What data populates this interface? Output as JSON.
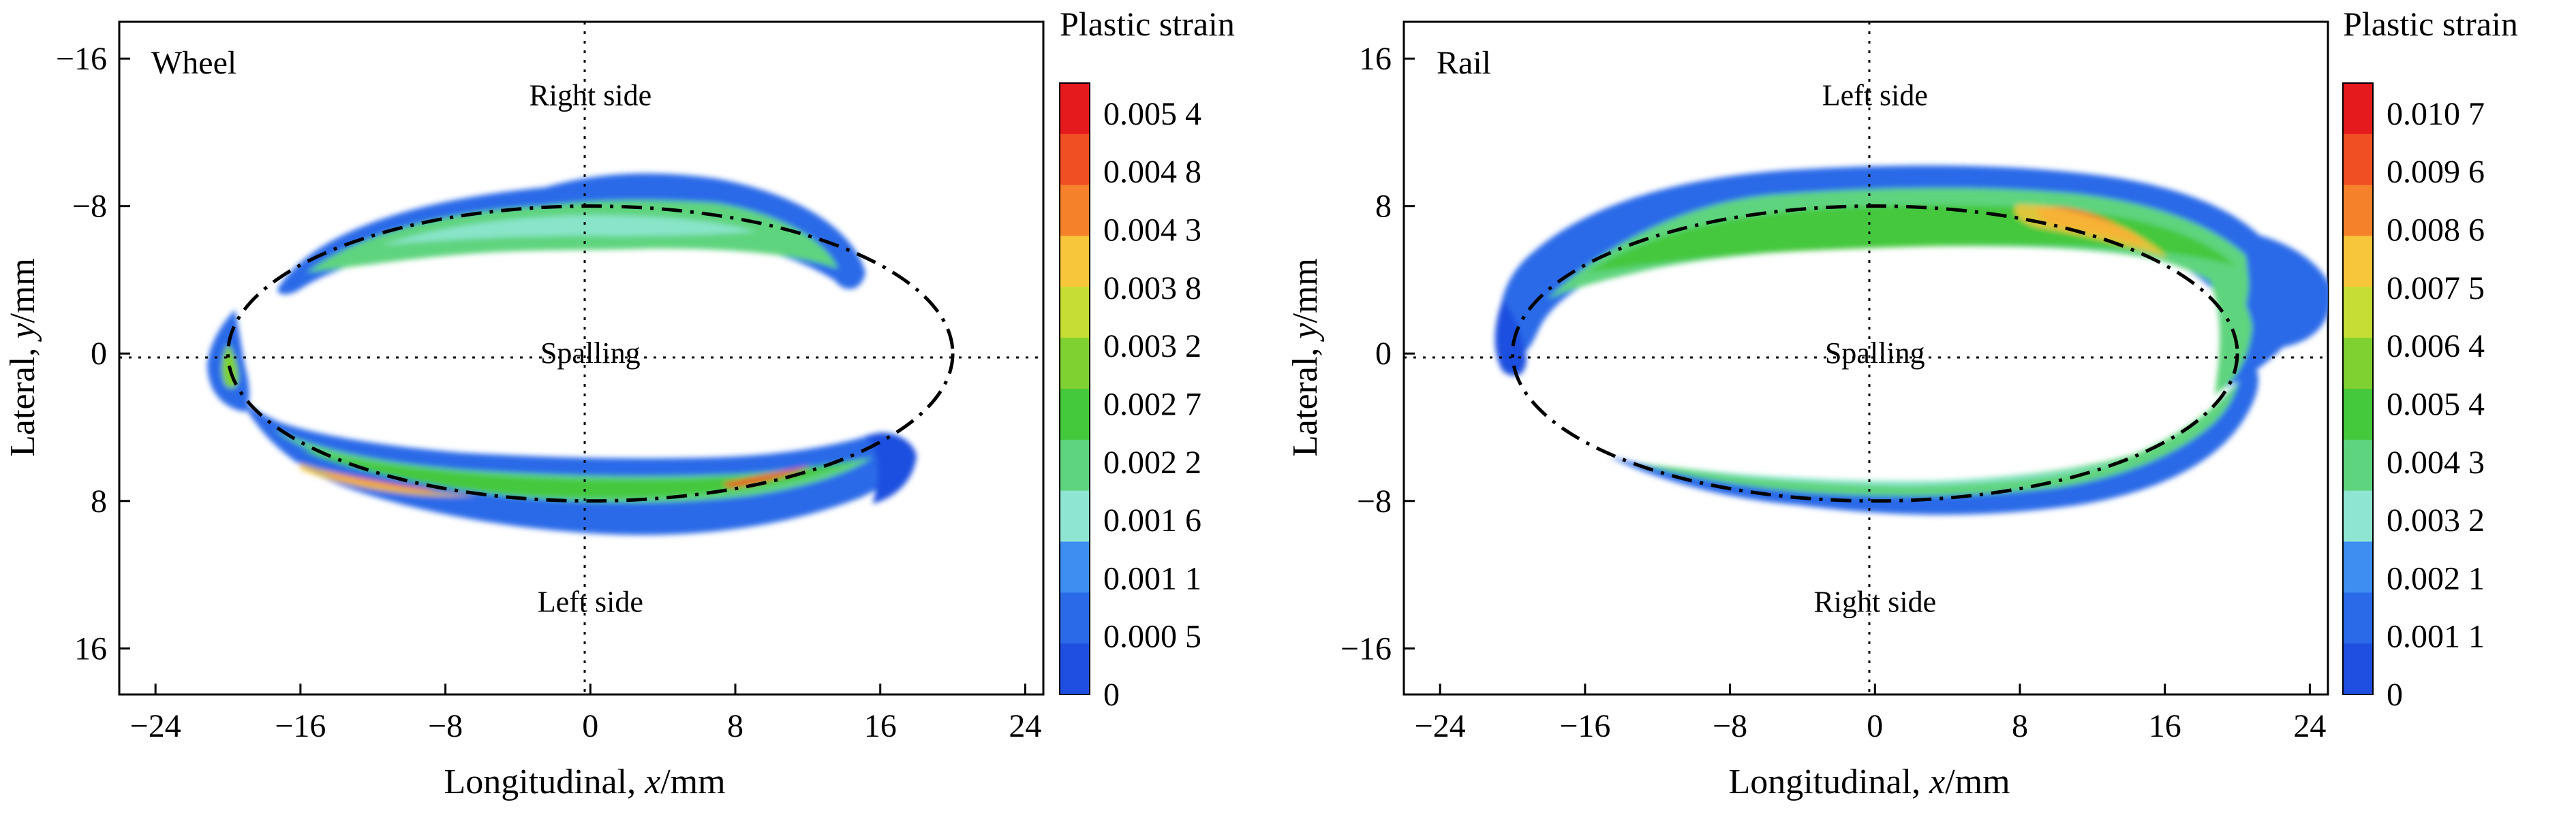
{
  "chart_data": [
    {
      "type": "heatmap",
      "panel_label": "Wheel",
      "xlabel": "Longitudinal, x/mm",
      "xlabel_parts": [
        "Longitudinal, ",
        "x",
        "/mm"
      ],
      "ylabel": "Lateral, y/mm",
      "ylabel_parts": [
        "Lateral, ",
        "y",
        "/mm"
      ],
      "xlim": [
        -26,
        25
      ],
      "ylim": [
        -18,
        18.5
      ],
      "x_ticks": [
        -24,
        -16,
        -8,
        0,
        8,
        16,
        24
      ],
      "y_ticks": [
        -16,
        -8,
        0,
        8,
        16
      ],
      "y_tick_labels": [
        "−16",
        "−8",
        "0",
        "8",
        "16"
      ],
      "annotations": [
        {
          "text": "Right side",
          "x": 0,
          "y": -14
        },
        {
          "text": "Spalling",
          "x": 0,
          "y": 0
        },
        {
          "text": "Left side",
          "x": 0,
          "y": 13.5
        }
      ],
      "contact_ellipse": {
        "semi_axis_x": 20,
        "semi_axis_y": 8
      },
      "colorbar": {
        "title": "Plastic strain",
        "levels": [
          "0.005 4",
          "0.004 8",
          "0.004 3",
          "0.003 8",
          "0.003 2",
          "0.002 7",
          "0.002 2",
          "0.001 6",
          "0.001 1",
          "0.000 5",
          "0"
        ],
        "colors": [
          "#e41a1c",
          "#f04e23",
          "#f6812b",
          "#f8c63a",
          "#c5dd34",
          "#7ed130",
          "#44c83c",
          "#5fd47e",
          "#8ee6d2",
          "#3d8ef0",
          "#2a6ae8",
          "#1f4fe0"
        ]
      }
    },
    {
      "type": "heatmap",
      "panel_label": "Rail",
      "xlabel": "Longitudinal, x/mm",
      "xlabel_parts": [
        "Longitudinal, ",
        "x",
        "/mm"
      ],
      "ylabel": "Lateral, y/mm",
      "ylabel_parts": [
        "Lateral, ",
        "y",
        "/mm"
      ],
      "xlim": [
        -26,
        25
      ],
      "ylim": [
        -18,
        18.5
      ],
      "x_ticks": [
        -24,
        -16,
        -8,
        0,
        8,
        16,
        24
      ],
      "y_ticks": [
        -16,
        -8,
        0,
        8,
        16
      ],
      "y_tick_labels": [
        "16",
        "8",
        "0",
        "−8",
        "−16"
      ],
      "annotations": [
        {
          "text": "Left side",
          "x": 0,
          "y": -14
        },
        {
          "text": "Spalling",
          "x": 0,
          "y": 0
        },
        {
          "text": "Right side",
          "x": 0,
          "y": 13.5
        }
      ],
      "contact_ellipse": {
        "semi_axis_x": 20,
        "semi_axis_y": 8
      },
      "colorbar": {
        "title": "Plastic strain",
        "levels": [
          "0.010 7",
          "0.009 6",
          "0.008 6",
          "0.007 5",
          "0.006 4",
          "0.005 4",
          "0.004 3",
          "0.003 2",
          "0.002 1",
          "0.001 1",
          "0"
        ],
        "colors": [
          "#e41a1c",
          "#f04e23",
          "#f6812b",
          "#f8c63a",
          "#c5dd34",
          "#7ed130",
          "#44c83c",
          "#5fd47e",
          "#8ee6d2",
          "#3d8ef0",
          "#2a6ae8",
          "#1f4fe0"
        ]
      }
    }
  ]
}
